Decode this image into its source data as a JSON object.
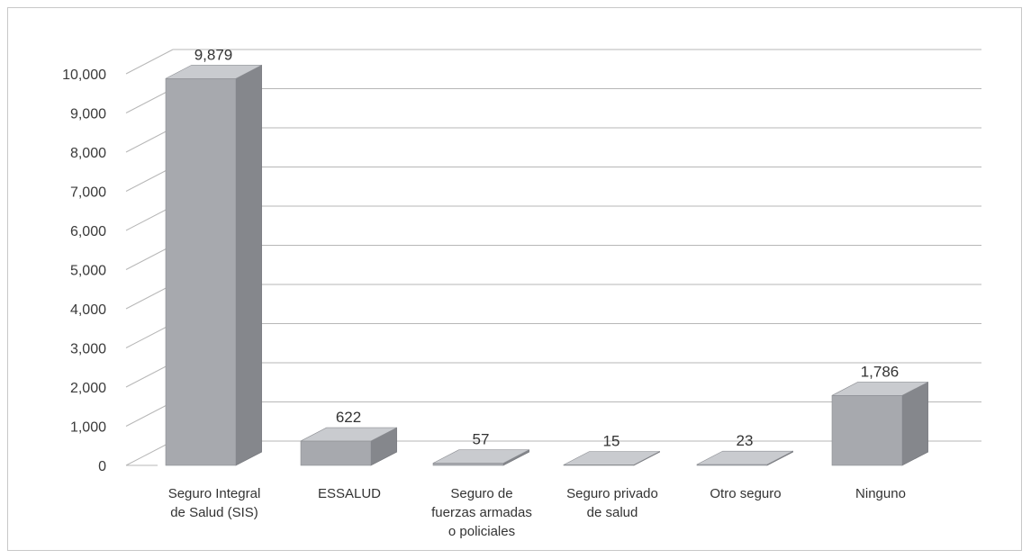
{
  "chart_data": {
    "type": "bar",
    "style": "3d-column",
    "categories": [
      [
        "Seguro Integral",
        "de Salud (SIS)"
      ],
      [
        "ESSALUD"
      ],
      [
        "Seguro de",
        "fuerzas armadas",
        "o policiales"
      ],
      [
        "Seguro privado",
        "de salud"
      ],
      [
        "Otro seguro"
      ],
      [
        "Ninguno"
      ]
    ],
    "values": [
      9879,
      622,
      57,
      15,
      23,
      1786
    ],
    "value_labels": [
      "9,879",
      "622",
      "57",
      "15",
      "23",
      "1,786"
    ],
    "ylim": [
      0,
      10000
    ],
    "yticks": [
      0,
      1000,
      2000,
      3000,
      4000,
      5000,
      6000,
      7000,
      8000,
      9000,
      10000
    ],
    "ytick_labels": [
      "0",
      "1,000",
      "2,000",
      "3,000",
      "4,000",
      "5,000",
      "6,000",
      "7,000",
      "8,000",
      "9,000",
      "10,000"
    ],
    "grid": true,
    "legend": "none",
    "colors": {
      "front": "#a7a9ae",
      "top": "#c9cbcf",
      "side": "#85878c",
      "grid": "#b7b7b7"
    }
  }
}
